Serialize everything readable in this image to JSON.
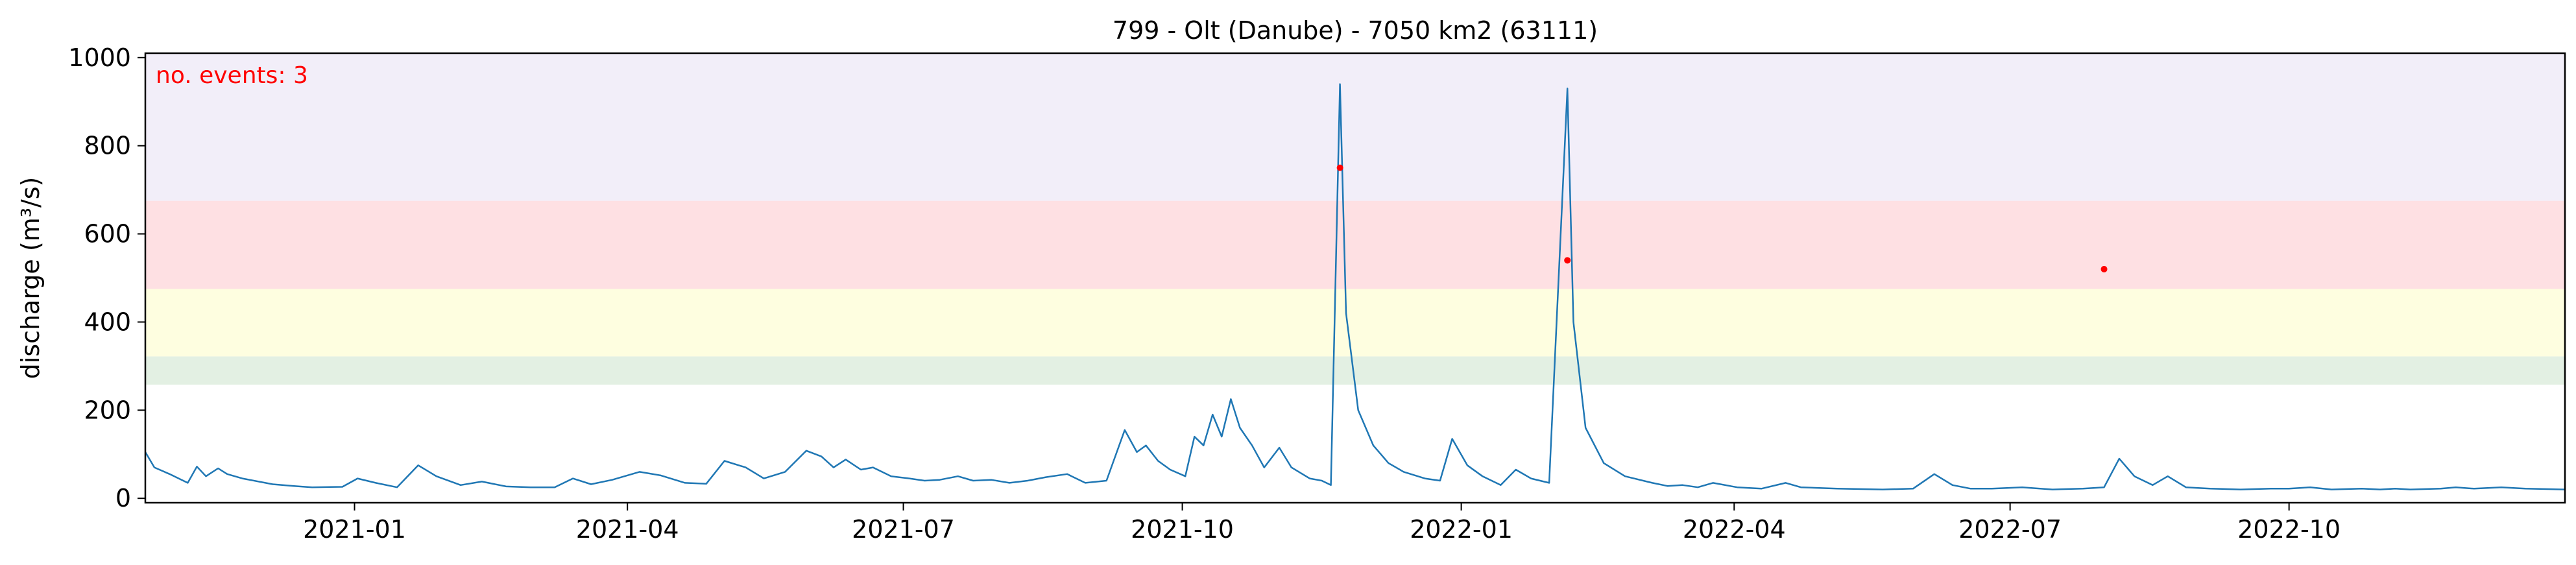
{
  "chart_data": {
    "type": "line",
    "title": "799 - Olt (Danube) - 7050 km2 (63111)",
    "ylabel": "discharge (m³/s)",
    "xlabel": "",
    "xlim": [
      "2020-10-24",
      "2022-12-31"
    ],
    "ylim": [
      -10,
      1010
    ],
    "x_ticks": [
      "2021-01-01",
      "2021-04-01",
      "2021-07-01",
      "2021-10-01",
      "2022-01-01",
      "2022-04-01",
      "2022-07-01",
      "2022-10-01"
    ],
    "x_tick_labels": [
      "2021-01",
      "2021-04",
      "2021-07",
      "2021-10",
      "2022-01",
      "2022-04",
      "2022-07",
      "2022-10"
    ],
    "y_ticks": [
      0,
      200,
      400,
      600,
      800,
      1000
    ],
    "y_tick_labels": [
      "0",
      "200",
      "400",
      "600",
      "800",
      "1000"
    ],
    "grid": false,
    "annotation": "no. events: 3",
    "colors": {
      "line": "#1f77b4",
      "event": "#ff0000",
      "band_green": "#e3f0e3",
      "band_yellow": "#fefee0",
      "band_red": "#fee0e3",
      "band_purple": "#f2eef9"
    },
    "threshold_bands": [
      {
        "color": "band_green",
        "from": 258,
        "to": 322
      },
      {
        "color": "band_yellow",
        "from": 322,
        "to": 475
      },
      {
        "color": "band_red",
        "from": 475,
        "to": 675
      },
      {
        "color": "band_purple",
        "from": 675,
        "to": 1010
      }
    ],
    "series": [
      {
        "points": [
          [
            "2020-10-24",
            105
          ],
          [
            "2020-10-27",
            70
          ],
          [
            "2020-11-01",
            55
          ],
          [
            "2020-11-07",
            35
          ],
          [
            "2020-11-10",
            72
          ],
          [
            "2020-11-13",
            50
          ],
          [
            "2020-11-17",
            68
          ],
          [
            "2020-11-20",
            55
          ],
          [
            "2020-11-25",
            45
          ],
          [
            "2020-12-05",
            32
          ],
          [
            "2020-12-12",
            28
          ],
          [
            "2020-12-18",
            25
          ],
          [
            "2020-12-28",
            26
          ],
          [
            "2021-01-02",
            45
          ],
          [
            "2021-01-08",
            35
          ],
          [
            "2021-01-15",
            25
          ],
          [
            "2021-01-22",
            75
          ],
          [
            "2021-01-28",
            50
          ],
          [
            "2021-02-05",
            30
          ],
          [
            "2021-02-12",
            38
          ],
          [
            "2021-02-20",
            27
          ],
          [
            "2021-02-28",
            25
          ],
          [
            "2021-03-08",
            25
          ],
          [
            "2021-03-14",
            45
          ],
          [
            "2021-03-20",
            32
          ],
          [
            "2021-03-27",
            42
          ],
          [
            "2021-04-05",
            60
          ],
          [
            "2021-04-12",
            52
          ],
          [
            "2021-04-20",
            35
          ],
          [
            "2021-04-27",
            33
          ],
          [
            "2021-05-03",
            85
          ],
          [
            "2021-05-10",
            70
          ],
          [
            "2021-05-16",
            45
          ],
          [
            "2021-05-23",
            60
          ],
          [
            "2021-05-30",
            108
          ],
          [
            "2021-06-04",
            95
          ],
          [
            "2021-06-08",
            70
          ],
          [
            "2021-06-12",
            88
          ],
          [
            "2021-06-17",
            65
          ],
          [
            "2021-06-21",
            70
          ],
          [
            "2021-06-27",
            50
          ],
          [
            "2021-07-03",
            45
          ],
          [
            "2021-07-08",
            40
          ],
          [
            "2021-07-13",
            42
          ],
          [
            "2021-07-19",
            50
          ],
          [
            "2021-07-24",
            40
          ],
          [
            "2021-07-30",
            42
          ],
          [
            "2021-08-05",
            35
          ],
          [
            "2021-08-11",
            40
          ],
          [
            "2021-08-17",
            48
          ],
          [
            "2021-08-24",
            55
          ],
          [
            "2021-08-30",
            35
          ],
          [
            "2021-09-06",
            40
          ],
          [
            "2021-09-12",
            155
          ],
          [
            "2021-09-16",
            105
          ],
          [
            "2021-09-19",
            120
          ],
          [
            "2021-09-23",
            85
          ],
          [
            "2021-09-27",
            65
          ],
          [
            "2021-10-02",
            50
          ],
          [
            "2021-10-05",
            140
          ],
          [
            "2021-10-08",
            120
          ],
          [
            "2021-10-11",
            190
          ],
          [
            "2021-10-14",
            140
          ],
          [
            "2021-10-17",
            225
          ],
          [
            "2021-10-20",
            160
          ],
          [
            "2021-10-24",
            120
          ],
          [
            "2021-10-28",
            70
          ],
          [
            "2021-11-02",
            115
          ],
          [
            "2021-11-06",
            70
          ],
          [
            "2021-11-12",
            45
          ],
          [
            "2021-11-16",
            40
          ],
          [
            "2021-11-19",
            30
          ],
          [
            "2021-11-22",
            940
          ],
          [
            "2021-11-24",
            420
          ],
          [
            "2021-11-28",
            200
          ],
          [
            "2021-12-03",
            120
          ],
          [
            "2021-12-08",
            80
          ],
          [
            "2021-12-13",
            60
          ],
          [
            "2021-12-20",
            45
          ],
          [
            "2021-12-25",
            40
          ],
          [
            "2021-12-29",
            135
          ],
          [
            "2022-01-03",
            75
          ],
          [
            "2022-01-08",
            50
          ],
          [
            "2022-01-14",
            30
          ],
          [
            "2022-01-19",
            65
          ],
          [
            "2022-01-24",
            45
          ],
          [
            "2022-01-30",
            35
          ],
          [
            "2022-02-05",
            930
          ],
          [
            "2022-02-07",
            400
          ],
          [
            "2022-02-11",
            160
          ],
          [
            "2022-02-17",
            80
          ],
          [
            "2022-02-24",
            50
          ],
          [
            "2022-03-05",
            35
          ],
          [
            "2022-03-10",
            28
          ],
          [
            "2022-03-15",
            30
          ],
          [
            "2022-03-20",
            25
          ],
          [
            "2022-03-25",
            35
          ],
          [
            "2022-04-02",
            25
          ],
          [
            "2022-04-10",
            22
          ],
          [
            "2022-04-18",
            35
          ],
          [
            "2022-04-23",
            25
          ],
          [
            "2022-05-05",
            22
          ],
          [
            "2022-05-20",
            20
          ],
          [
            "2022-05-30",
            22
          ],
          [
            "2022-06-06",
            55
          ],
          [
            "2022-06-12",
            30
          ],
          [
            "2022-06-18",
            22
          ],
          [
            "2022-06-25",
            22
          ],
          [
            "2022-07-05",
            25
          ],
          [
            "2022-07-15",
            20
          ],
          [
            "2022-07-25",
            22
          ],
          [
            "2022-08-01",
            25
          ],
          [
            "2022-08-06",
            90
          ],
          [
            "2022-08-11",
            50
          ],
          [
            "2022-08-17",
            30
          ],
          [
            "2022-08-22",
            50
          ],
          [
            "2022-08-28",
            25
          ],
          [
            "2022-09-05",
            22
          ],
          [
            "2022-09-15",
            20
          ],
          [
            "2022-09-25",
            22
          ],
          [
            "2022-10-01",
            22
          ],
          [
            "2022-10-08",
            25
          ],
          [
            "2022-10-15",
            20
          ],
          [
            "2022-10-25",
            22
          ],
          [
            "2022-10-31",
            20
          ],
          [
            "2022-11-05",
            22
          ],
          [
            "2022-11-10",
            20
          ],
          [
            "2022-11-20",
            22
          ],
          [
            "2022-11-25",
            25
          ],
          [
            "2022-12-01",
            22
          ],
          [
            "2022-12-10",
            25
          ],
          [
            "2022-12-18",
            22
          ],
          [
            "2022-12-31",
            20
          ]
        ]
      }
    ],
    "events": [
      {
        "x": "2021-11-22",
        "y": 750
      },
      {
        "x": "2022-02-05",
        "y": 540
      },
      {
        "x": "2022-08-01",
        "y": 520
      }
    ]
  }
}
